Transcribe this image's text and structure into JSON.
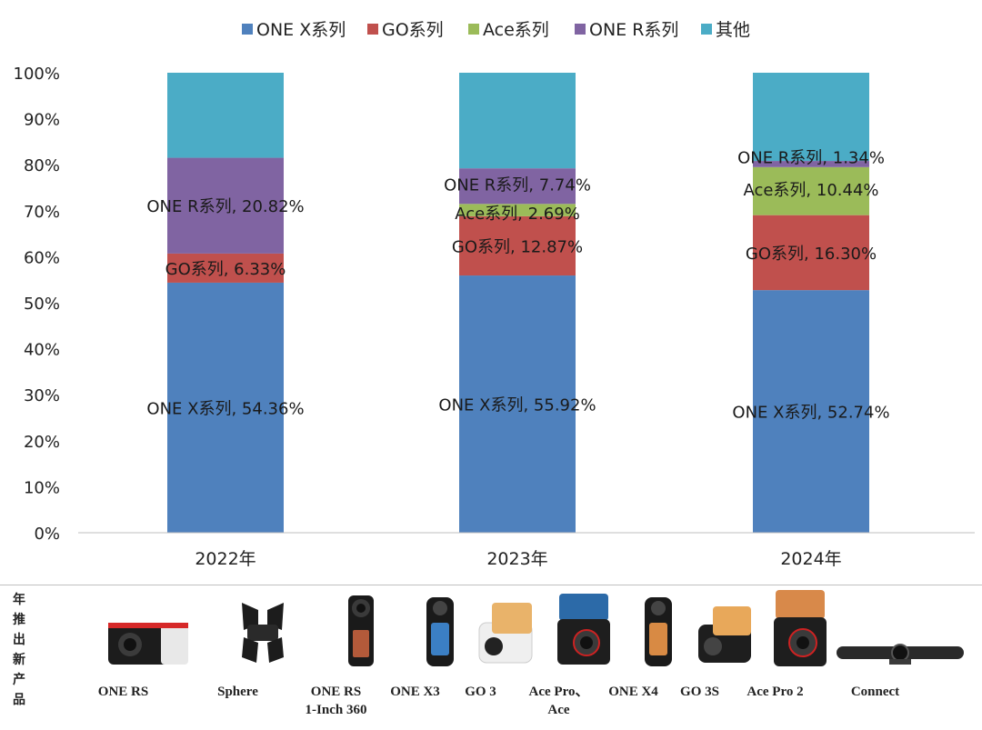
{
  "chart_data": {
    "type": "bar",
    "stacked": true,
    "categories": [
      "2022年",
      "2023年",
      "2024年"
    ],
    "series": [
      {
        "name": "ONE X系列",
        "color": "#4F81BD",
        "values": [
          54.36,
          55.92,
          52.74
        ]
      },
      {
        "name": "GO系列",
        "color": "#C0504D",
        "values": [
          6.33,
          12.87,
          16.3
        ]
      },
      {
        "name": "Ace系列",
        "color": "#9BBB59",
        "values": [
          0,
          2.69,
          10.44
        ]
      },
      {
        "name": "ONE R系列",
        "color": "#8064A2",
        "values": [
          20.82,
          7.74,
          1.34
        ]
      },
      {
        "name": "其他",
        "color": "#4BACC6",
        "values": [
          18.49,
          20.78,
          19.18
        ]
      }
    ],
    "data_labels": [
      [
        {
          "series": 0,
          "text": "ONE X系列, 54.36%"
        },
        {
          "series": 1,
          "text": "GO系列, 6.33%"
        },
        {
          "series": 3,
          "text": "ONE R系列, 20.82%"
        }
      ],
      [
        {
          "series": 0,
          "text": "ONE X系列, 55.92%"
        },
        {
          "series": 1,
          "text": "GO系列, 12.87%"
        },
        {
          "series": 2,
          "text": "Ace系列, 2.69%"
        },
        {
          "series": 3,
          "text": "ONE R系列, 7.74%"
        }
      ],
      [
        {
          "series": 0,
          "text": "ONE X系列, 52.74%"
        },
        {
          "series": 1,
          "text": "GO系列, 16.30%"
        },
        {
          "series": 2,
          "text": "Ace系列, 10.44%"
        },
        {
          "series": 3,
          "text": "ONE R系列, 1.34%"
        }
      ]
    ],
    "y_ticks": [
      "0%",
      "10%",
      "20%",
      "30%",
      "40%",
      "50%",
      "60%",
      "70%",
      "80%",
      "90%",
      "100%"
    ],
    "ylim": [
      0,
      100
    ],
    "legend_position": "top",
    "grid": false,
    "title": "",
    "xlabel": "",
    "ylabel": ""
  },
  "products_panel": {
    "side_label": "年推出新产品",
    "items": [
      {
        "label": "ONE RS",
        "icon": "one-rs-camera-icon"
      },
      {
        "label": "Sphere",
        "icon": "sphere-camera-icon"
      },
      {
        "label": "ONE RS\n1-Inch 360",
        "icon": "one-rs-1inch-camera-icon"
      },
      {
        "label": "ONE X3",
        "icon": "one-x3-camera-icon"
      },
      {
        "label": "GO 3",
        "icon": "go3-camera-icon"
      },
      {
        "label": "Ace Pro、\nAce",
        "icon": "ace-pro-camera-icon"
      },
      {
        "label": "ONE X4",
        "icon": "one-x4-camera-icon"
      },
      {
        "label": "GO 3S",
        "icon": "go3s-camera-icon"
      },
      {
        "label": "Ace Pro 2",
        "icon": "ace-pro-2-camera-icon"
      },
      {
        "label": "Connect",
        "icon": "connect-webcam-icon"
      }
    ]
  }
}
